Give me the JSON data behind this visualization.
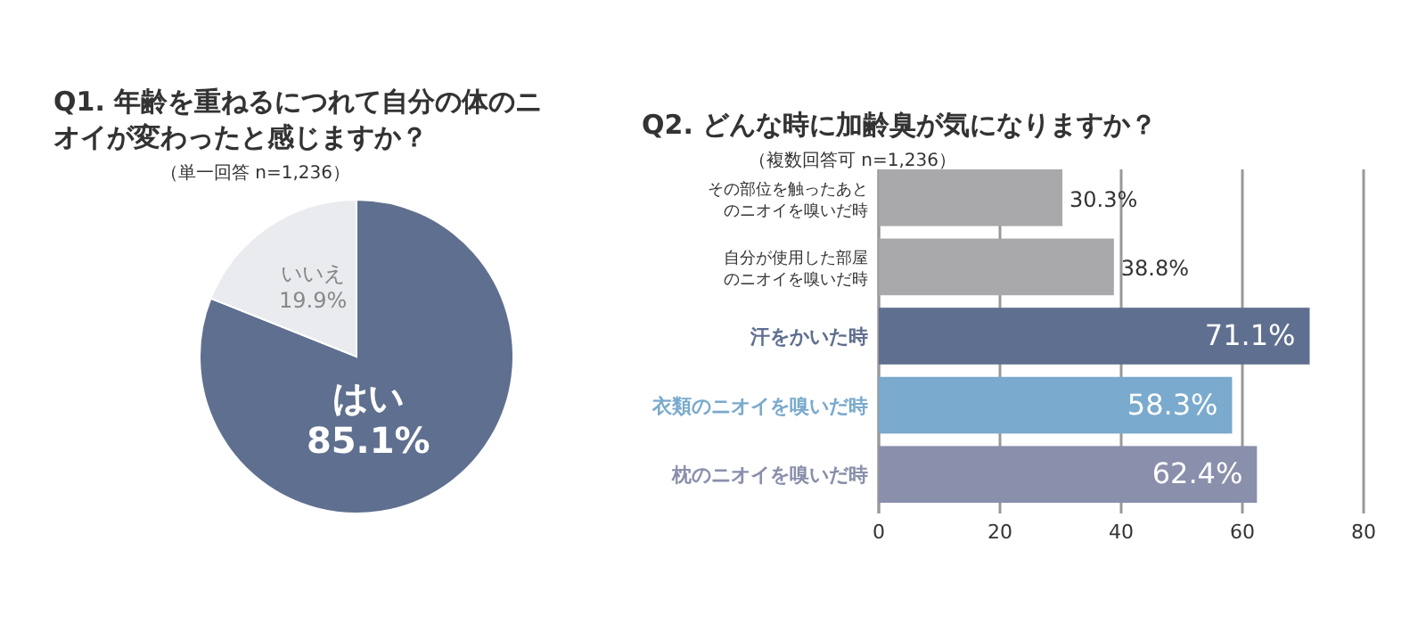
{
  "chart_data": [
    {
      "type": "pie",
      "title": "Q1. 年齢を重ねるにつれて自分の体のニオイが変わったと感じますか？",
      "subtitle": "（単一回答 n=1,236）",
      "categories": [
        "はい",
        "いいえ"
      ],
      "values": [
        85.1,
        19.9
      ],
      "colors": [
        "#5f6f8f",
        "#e9ebef"
      ],
      "value_labels": [
        "85.1%",
        "19.9%"
      ]
    },
    {
      "type": "bar",
      "orientation": "horizontal",
      "title": "Q2. どんな時に加齢臭が気になりますか？",
      "subtitle": "（複数回答可 n=1,236）",
      "categories": [
        "その部位を触ったあとのニオイを嗅いだ時",
        "自分が使用した部屋のニオイを嗅いだ時",
        "汗をかいた時",
        "衣類のニオイを嗅いだ時",
        "枕のニオイを嗅いだ時"
      ],
      "values": [
        30.3,
        38.8,
        71.1,
        58.3,
        62.4
      ],
      "colors": [
        "#a9a9ab",
        "#a9a9ab",
        "#5f6f8f",
        "#7aaacd",
        "#8a8fab"
      ],
      "value_labels": [
        "30.3%",
        "38.8%",
        "71.1%",
        "58.3%",
        "62.4%"
      ],
      "xlim": [
        0,
        80
      ],
      "xticks": [
        0,
        20,
        40,
        60,
        80
      ],
      "grid": "x"
    }
  ]
}
